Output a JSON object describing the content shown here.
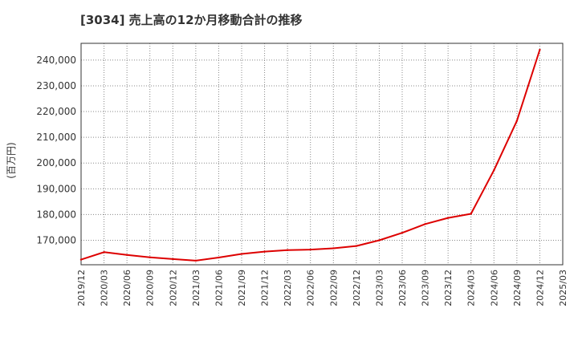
{
  "chart_data": {
    "type": "line",
    "title": "[3034]  売上高の12か月移動合計の推移",
    "xlabel": "",
    "ylabel": "(百万円)",
    "categories": [
      "2019/12",
      "2020/03",
      "2020/06",
      "2020/09",
      "2020/12",
      "2021/03",
      "2021/06",
      "2021/09",
      "2021/12",
      "2022/03",
      "2022/06",
      "2022/09",
      "2022/12",
      "2023/03",
      "2023/06",
      "2023/09",
      "2023/12",
      "2024/03",
      "2024/06",
      "2024/09",
      "2024/12",
      "2025/03"
    ],
    "series": [
      {
        "name": "売上高12か月移動合計",
        "color": "#dd0000",
        "values": [
          162500,
          165400,
          164300,
          163400,
          162700,
          162100,
          163300,
          164700,
          165600,
          166200,
          166400,
          166900,
          167800,
          170000,
          172900,
          176300,
          178700,
          180300,
          197200,
          216400,
          244000,
          null
        ]
      }
    ],
    "yticks": [
      170000,
      180000,
      190000,
      200000,
      210000,
      220000,
      230000,
      240000
    ],
    "ytick_labels": [
      "170,000",
      "180,000",
      "190,000",
      "200,000",
      "210,000",
      "220,000",
      "230,000",
      "240,000"
    ],
    "ylim": [
      160500,
      246500
    ],
    "grid": true
  }
}
